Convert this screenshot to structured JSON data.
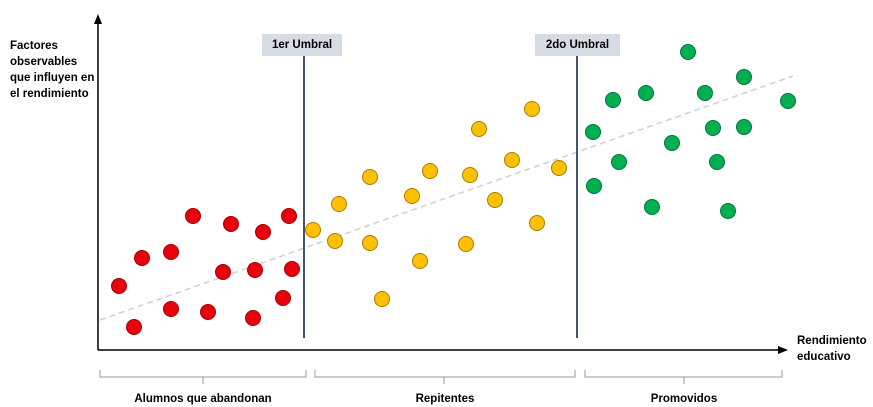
{
  "y_axis_label": "Factores observables que influyen en el rendimiento",
  "x_axis_label": "Rendimiento educativo",
  "thresholds": [
    "1er Umbral",
    "2do Umbral"
  ],
  "groups": [
    "Alumnos que abandonan",
    "Repitentes",
    "Promovidos"
  ],
  "colors": {
    "abandonan": "#e8000d",
    "repitentes": "#ffc000",
    "promovidos": "#00b050",
    "threshold_tag": "#d6dce4",
    "threshold_line": "#44546a",
    "trend": "#d0d0d0"
  }
}
